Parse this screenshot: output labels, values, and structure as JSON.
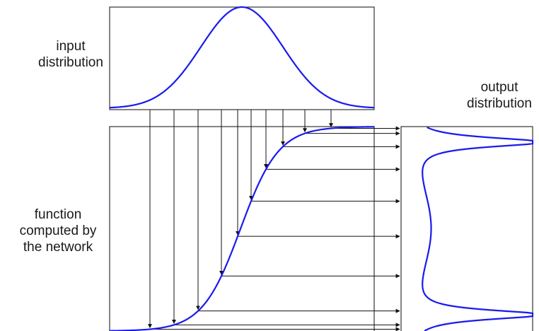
{
  "labels": {
    "input": [
      "input",
      "distribution"
    ],
    "output": [
      "output",
      "distribution"
    ],
    "function": [
      "function",
      "computed by",
      "the network"
    ]
  },
  "colors": {
    "curve": "#1a1aee",
    "frame": "#333333",
    "arrow": "#111111"
  },
  "diagram": {
    "input_distribution": "gaussian bell curve",
    "function_shape": "sigmoid",
    "output_distribution": "bimodal density peaked at both ends",
    "sample_count": 10
  }
}
